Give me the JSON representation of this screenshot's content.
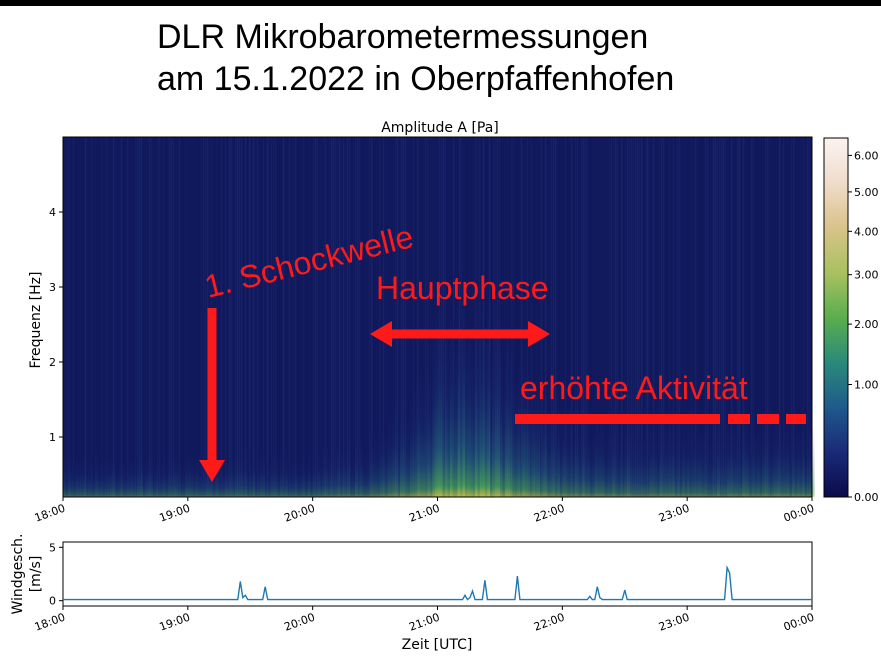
{
  "slide": {
    "title_line1": "DLR Mikrobarometermessungen",
    "title_line2": "am 15.1.2022 in Oberpfaffenhofen"
  },
  "annotations": {
    "schockwelle": "1. Schockwelle",
    "hauptphase": "Hauptphase",
    "aktivitaet": "erhöhte Aktivität",
    "color": "#ff1a1a"
  },
  "chart_data": [
    {
      "type": "heatmap",
      "title": "Amplitude A [Pa]",
      "ylabel": "Frequenz [Hz]",
      "xlabel": "",
      "x_ticks": [
        "18:00",
        "19:00",
        "20:00",
        "21:00",
        "22:00",
        "23:00",
        "00:00"
      ],
      "xlim_hours": [
        18,
        24
      ],
      "y_ticks": [
        1,
        2,
        3,
        4
      ],
      "ylim": [
        0.2,
        5.0
      ],
      "colorbar": {
        "ticks": [
          0.0,
          1.0,
          2.0,
          3.0,
          4.0,
          5.0,
          6.0
        ],
        "tick_labels": [
          "0.00",
          "1.00",
          "2.00",
          "3.00",
          "4.00",
          "5.00",
          "6.00"
        ],
        "range": [
          0,
          6.5
        ],
        "colors": [
          "#0b0b4a",
          "#1a2a78",
          "#1f5a8c",
          "#2a8a7a",
          "#5aae4e",
          "#a9c160",
          "#d9c28a",
          "#f0dccc",
          "#fbf3f0"
        ]
      },
      "intensity_profile": {
        "hours": [
          18.0,
          18.5,
          19.0,
          19.5,
          20.0,
          20.5,
          20.8,
          21.0,
          21.2,
          21.5,
          21.8,
          22.0,
          22.5,
          23.0,
          23.5,
          24.0
        ],
        "amplitude": [
          0.55,
          0.6,
          0.6,
          0.6,
          0.62,
          0.9,
          1.6,
          2.6,
          3.0,
          2.3,
          1.6,
          1.2,
          1.1,
          1.0,
          1.1,
          1.0
        ]
      }
    },
    {
      "type": "line",
      "ylabel": "Windgesch. [m/s]",
      "xlabel": "Zeit [UTC]",
      "x_ticks": [
        "18:00",
        "19:00",
        "20:00",
        "21:00",
        "22:00",
        "23:00",
        "00:00"
      ],
      "xlim_hours": [
        18,
        24
      ],
      "y_ticks": [
        0,
        5
      ],
      "ylim": [
        -0.5,
        5.5
      ],
      "line_color": "#1f77b4",
      "series": [
        {
          "x_hours": [
            18.0,
            19.4,
            19.42,
            19.44,
            19.46,
            19.48,
            19.6,
            19.62,
            19.64,
            21.2,
            21.22,
            21.24,
            21.26,
            21.28,
            21.3,
            21.32,
            21.36,
            21.38,
            21.4,
            21.62,
            21.64,
            21.66,
            22.2,
            22.22,
            22.24,
            22.26,
            22.28,
            22.3,
            22.32,
            22.48,
            22.5,
            22.52,
            23.3,
            23.32,
            23.34,
            23.36,
            24.0
          ],
          "y": [
            0.1,
            0.1,
            1.8,
            0.3,
            0.5,
            0.1,
            0.1,
            1.3,
            0.1,
            0.1,
            0.5,
            0.1,
            0.3,
            0.9,
            0.1,
            0.1,
            0.1,
            1.9,
            0.1,
            0.1,
            2.3,
            0.1,
            0.1,
            0.4,
            0.1,
            0.1,
            1.3,
            0.3,
            0.1,
            0.1,
            1.0,
            0.1,
            0.1,
            3.1,
            2.6,
            0.1,
            0.1
          ]
        }
      ]
    }
  ]
}
